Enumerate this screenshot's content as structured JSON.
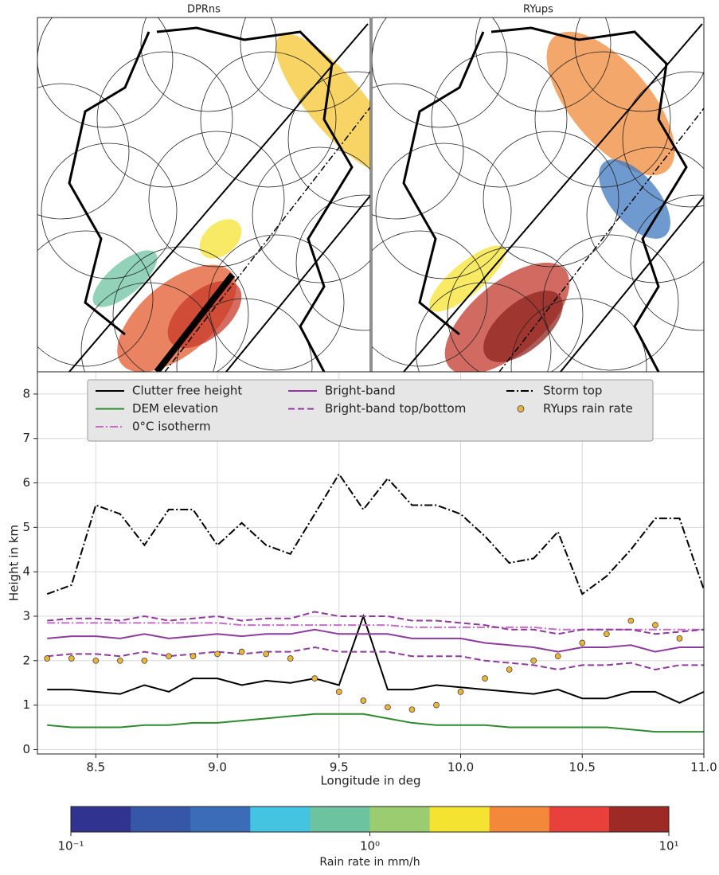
{
  "maps": [
    {
      "title": "DPRns"
    },
    {
      "title": "RYups"
    }
  ],
  "chart_data": {
    "type": "line",
    "xlabel": "Longitude in deg",
    "ylabel": "Height in km",
    "xlim": [
      8.26,
      11.0
    ],
    "ylim": [
      -0.1,
      8.5
    ],
    "xticks": [
      8.5,
      {
        "value": 9,
        "label": "9.0"
      },
      9.5,
      {
        "value": 10,
        "label": "10.0"
      },
      10.5,
      {
        "value": 11,
        "label": "11.0"
      }
    ],
    "yticks": [
      0,
      1,
      2,
      3,
      4,
      5,
      6,
      7,
      8
    ],
    "grid": true,
    "legend_ncol": 3,
    "x": [
      8.3,
      8.4,
      8.5,
      8.6,
      8.7,
      8.8,
      8.9,
      9.0,
      9.1,
      9.2,
      9.3,
      9.4,
      9.5,
      9.6,
      9.7,
      9.8,
      9.9,
      10.0,
      10.1,
      10.2,
      10.3,
      10.4,
      10.5,
      10.6,
      10.7,
      10.8,
      10.9,
      11.0
    ],
    "series": [
      {
        "name": "Clutter free height",
        "color": "#000000",
        "style": "solid",
        "values": [
          1.35,
          1.35,
          1.3,
          1.25,
          1.45,
          1.3,
          1.6,
          1.6,
          1.45,
          1.55,
          1.5,
          1.6,
          1.45,
          3.0,
          1.35,
          1.35,
          1.45,
          1.4,
          1.35,
          1.3,
          1.25,
          1.35,
          1.15,
          1.15,
          1.3,
          1.3,
          1.05,
          1.3
        ]
      },
      {
        "name": "DEM elevation",
        "color": "#2e8b2e",
        "style": "solid",
        "values": [
          0.55,
          0.5,
          0.5,
          0.5,
          0.55,
          0.55,
          0.6,
          0.6,
          0.65,
          0.7,
          0.75,
          0.8,
          0.8,
          0.8,
          0.7,
          0.6,
          0.55,
          0.55,
          0.55,
          0.5,
          0.5,
          0.5,
          0.5,
          0.5,
          0.45,
          0.4,
          0.4,
          0.4
        ]
      },
      {
        "name": "0°C isotherm",
        "color": "#c96bc9",
        "style": "dashdot",
        "values": [
          2.85,
          2.85,
          2.85,
          2.85,
          2.85,
          2.85,
          2.85,
          2.85,
          2.8,
          2.8,
          2.8,
          2.8,
          2.8,
          2.8,
          2.8,
          2.75,
          2.75,
          2.75,
          2.75,
          2.75,
          2.75,
          2.7,
          2.7,
          2.7,
          2.7,
          2.7,
          2.7,
          2.7
        ]
      },
      {
        "name": "Bright-band",
        "color": "#8e3a9e",
        "style": "solid",
        "values": [
          2.5,
          2.55,
          2.55,
          2.5,
          2.6,
          2.5,
          2.55,
          2.6,
          2.55,
          2.6,
          2.6,
          2.7,
          2.6,
          2.6,
          2.6,
          2.5,
          2.5,
          2.5,
          2.4,
          2.35,
          2.3,
          2.2,
          2.3,
          2.3,
          2.35,
          2.2,
          2.3,
          2.3
        ]
      },
      {
        "name": "Bright-band top/bottom",
        "color": "#8e3a9e",
        "style": "dashed",
        "values": [
          2.9,
          2.95,
          2.95,
          2.9,
          3.0,
          2.9,
          2.95,
          3.0,
          2.9,
          2.95,
          2.95,
          3.1,
          3.0,
          3.0,
          3.0,
          2.9,
          2.9,
          2.85,
          2.8,
          2.7,
          2.7,
          2.6,
          2.7,
          2.7,
          2.7,
          2.6,
          2.65,
          2.7
        ],
        "lower": [
          2.1,
          2.15,
          2.15,
          2.1,
          2.2,
          2.1,
          2.15,
          2.2,
          2.15,
          2.2,
          2.2,
          2.3,
          2.2,
          2.2,
          2.2,
          2.1,
          2.1,
          2.1,
          2.0,
          1.95,
          1.9,
          1.8,
          1.9,
          1.9,
          1.95,
          1.8,
          1.9,
          1.9
        ]
      },
      {
        "name": "Storm top",
        "color": "#000000",
        "style": "dashdot",
        "values": [
          3.5,
          3.7,
          5.5,
          5.3,
          4.6,
          5.4,
          5.4,
          4.6,
          5.1,
          4.6,
          4.4,
          5.3,
          6.2,
          5.4,
          6.1,
          5.5,
          5.5,
          5.3,
          4.8,
          4.2,
          4.3,
          4.9,
          3.5,
          3.9,
          4.5,
          5.2,
          5.2,
          3.6
        ]
      },
      {
        "name": "RYups rain rate",
        "color": "#e9b53c",
        "style": "points",
        "x": [
          8.3,
          8.4,
          8.5,
          8.6,
          8.7,
          8.8,
          8.9,
          9.0,
          9.1,
          9.2,
          9.3,
          9.4,
          9.5,
          9.6,
          9.7,
          9.8,
          9.9,
          10.0,
          10.1,
          10.2,
          10.3,
          10.4,
          10.5,
          10.6,
          10.7,
          10.8,
          10.9
        ],
        "values": [
          2.05,
          2.05,
          2.0,
          2.0,
          2.0,
          2.1,
          2.1,
          2.15,
          2.2,
          2.15,
          2.05,
          1.6,
          1.3,
          1.1,
          0.95,
          0.9,
          1.0,
          1.3,
          1.6,
          1.8,
          2.0,
          2.1,
          2.4,
          2.6,
          2.9,
          2.8,
          2.5
        ]
      }
    ],
    "colorbar": {
      "label": "Rain rate in mm/h",
      "lim": [
        0.1,
        10
      ],
      "log": true,
      "colors": [
        "#30338f",
        "#3656a8",
        "#3a6cb8",
        "#45c4e2",
        "#6cc3a0",
        "#9bcc6f",
        "#f5e331",
        "#f4883a",
        "#e8403a",
        "#9e2a25"
      ],
      "ticks": [
        {
          "value": 0.1,
          "label": "10⁻¹"
        },
        {
          "value": 1,
          "label": "10⁰"
        },
        {
          "value": 10,
          "label": "10¹"
        }
      ]
    }
  }
}
